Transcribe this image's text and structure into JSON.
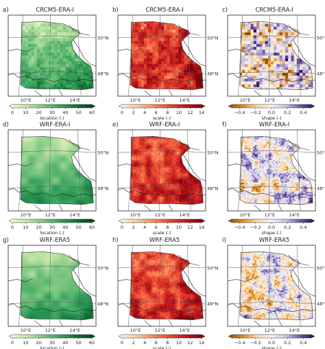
{
  "panels": [
    {
      "letter": "a)",
      "title": "CRCM5-ERA-I",
      "var": "location",
      "style": "blocky"
    },
    {
      "letter": "b)",
      "title": "CRCM5-ERA-I",
      "var": "scale",
      "style": "blocky"
    },
    {
      "letter": "c)",
      "title": "CRCM5-ERA-I",
      "var": "shape",
      "style": "blocky"
    },
    {
      "letter": "d)",
      "title": "WRF-ERA-I",
      "var": "location",
      "style": "fine"
    },
    {
      "letter": "e)",
      "title": "WRF-ERA-I",
      "var": "scale",
      "style": "fine"
    },
    {
      "letter": "f)",
      "title": "WRF-ERA-I",
      "var": "shape",
      "style": "fine"
    },
    {
      "letter": "g)",
      "title": "WRF-ERA5",
      "var": "location",
      "style": "fine"
    },
    {
      "letter": "h)",
      "title": "WRF-ERA5",
      "var": "scale",
      "style": "fine"
    },
    {
      "letter": "i)",
      "title": "WRF-ERA5",
      "var": "shape",
      "style": "fine"
    }
  ],
  "colorbars": {
    "location": {
      "label": "location (-)",
      "ticks": [
        "0",
        "10",
        "20",
        "30",
        "40",
        "50",
        "60"
      ],
      "range": [
        0,
        60
      ],
      "colors": [
        "#fcfbd8",
        "#c6e8a8",
        "#7bc680",
        "#33a05a",
        "#0d6b34",
        "#00441b"
      ]
    },
    "scale": {
      "label": "scale (-)",
      "ticks": [
        "0",
        "2",
        "4",
        "6",
        "8",
        "10",
        "12",
        "14"
      ],
      "range": [
        0,
        14
      ],
      "colors": [
        "#fff5e8",
        "#fdd0a2",
        "#fc8a59",
        "#e6452f",
        "#b7141c",
        "#7a0006"
      ]
    },
    "shape": {
      "label": "shape (-)",
      "ticks": [
        "−0.4",
        "−0.2",
        "0.0",
        "0.2",
        "0.4"
      ],
      "range": [
        -0.5,
        0.5
      ],
      "colors": [
        "#8c4a00",
        "#e08a1e",
        "#fdd9a8",
        "#f4f4f4",
        "#c9c2e6",
        "#6d55a8",
        "#2d0a55"
      ]
    }
  },
  "axis_labels": {
    "lon": [
      "10°E",
      "12°E",
      "14°E"
    ],
    "lat": [
      "50°N",
      "48°N"
    ]
  }
}
